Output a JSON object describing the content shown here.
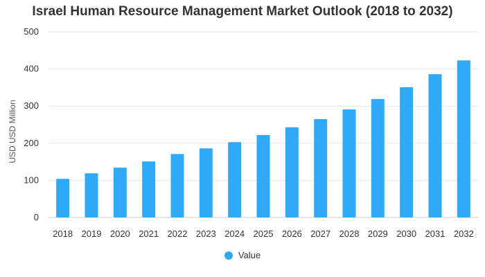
{
  "chart_data": {
    "type": "bar",
    "title": "Israel Human Resource Management Market Outlook (2018 to 2032)",
    "xlabel": "",
    "ylabel": "USD USD Million",
    "categories": [
      "2018",
      "2019",
      "2020",
      "2021",
      "2022",
      "2023",
      "2024",
      "2025",
      "2026",
      "2027",
      "2028",
      "2029",
      "2030",
      "2031",
      "2032"
    ],
    "series": [
      {
        "name": "Value",
        "values": [
          104,
          119,
          134,
          151,
          171,
          186,
          203,
          222,
          243,
          265,
          291,
          319,
          351,
          386,
          423
        ]
      }
    ],
    "ylim": [
      0,
      500
    ],
    "yticks": [
      0,
      100,
      200,
      300,
      400,
      500
    ],
    "grid": true,
    "legend_position": "bottom-center",
    "colors": {
      "bar": "#2eaaf9",
      "grid": "#e6e6e6",
      "text": "#333333"
    }
  }
}
